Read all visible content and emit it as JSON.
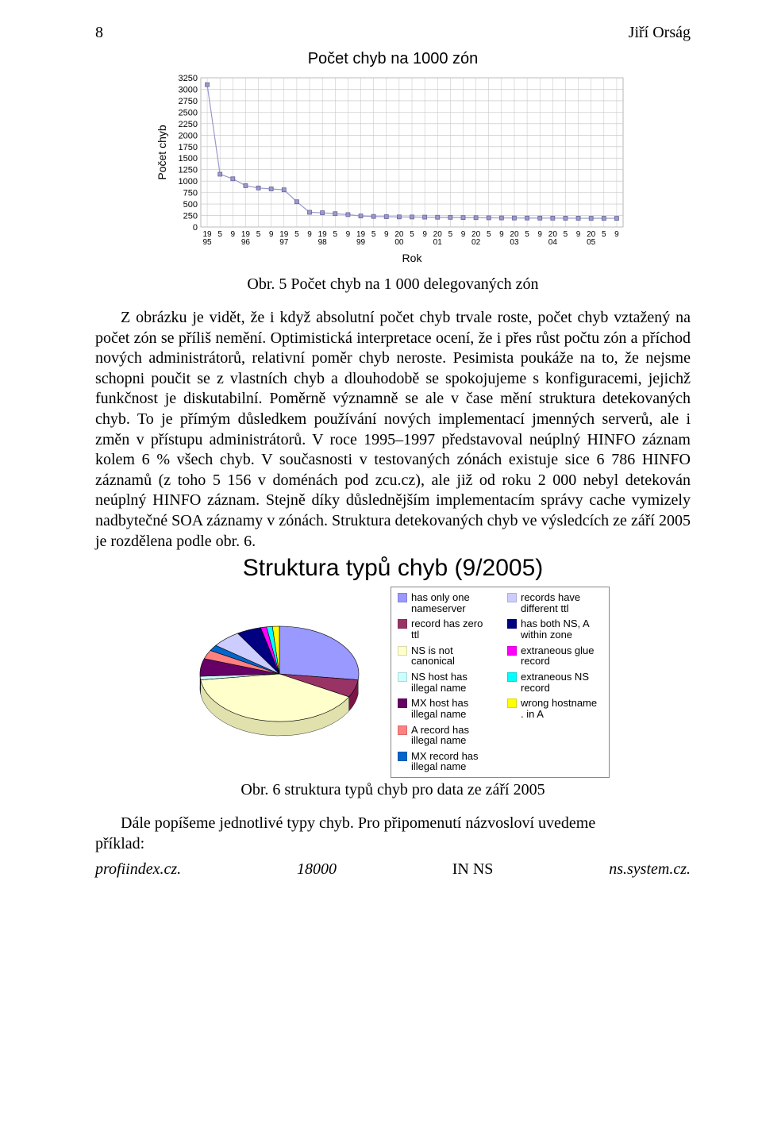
{
  "page": {
    "number": "8",
    "author": "Jiří Orság"
  },
  "chart1": {
    "type": "scatter-line",
    "title": "Počet chyb na 1000 zón",
    "ylabel": "Počet chyb",
    "xlabel": "Rok",
    "yticks": [
      0,
      250,
      500,
      750,
      1000,
      1250,
      1500,
      1750,
      2000,
      2250,
      2500,
      2750,
      3000,
      3250
    ],
    "ylim": [
      0,
      3250
    ],
    "years": [
      "19\n95",
      "19\n96",
      "19\n97",
      "19\n98",
      "19\n99",
      "20\n00",
      "20\n01",
      "20\n02",
      "20\n03",
      "20\n04",
      "20\n05"
    ],
    "subcols_per_year": 3,
    "sublabels": [
      "",
      "5",
      "9"
    ],
    "values": [
      3100,
      1150,
      1050,
      900,
      850,
      830,
      810,
      550,
      320,
      310,
      290,
      270,
      240,
      230,
      225,
      220,
      218,
      215,
      212,
      210,
      205,
      203,
      200,
      198,
      196,
      195,
      194,
      193,
      192,
      191,
      190,
      190,
      189
    ],
    "marker_color": "#9999cc",
    "marker_border": "#666699",
    "line_color": "#9999cc",
    "tick_fontsize": 11,
    "label_fontsize": 14,
    "title_fontsize": 18,
    "grid_color": "#c0c0c0",
    "background_color": "#ffffff",
    "marker_size": 5
  },
  "caption1": "Obr. 5 Počet chyb na 1 000 delegovaných zón",
  "body": "Z obrázku je vidět, že i když absolutní počet chyb trvale roste, počet chyb vztažený na počet zón se příliš nemění. Optimistická interpretace ocení, že i přes růst počtu zón a příchod nových administrátorů, relativní poměr chyb neroste. Pesimista poukáže na to, že nejsme schopni poučit se z vlastních chyb a dlouhodobě se spokojujeme s konfiguracemi, jejichž funkčnost je diskutabilní. Poměrně významně se ale v čase mění struktura detekovaných chyb. To je přímým důsledkem používání nových implementací jmenných serverů, ale i změn v přístupu administrátorů. V roce 1995–1997 představoval neúplný HINFO záznam kolem 6 % všech chyb. V současnosti v testovaných zónách existuje sice 6 786 HINFO záznamů (z toho 5 156 v doménách pod zcu.cz), ale již od roku 2 000 nebyl detekován neúplný HINFO záznam. Stejně díky důslednějším implementacím správy cache vymizely nadbytečné SOA záznamy v zónách. Struktura detekovaných chyb ve výsledcích ze září 2005 je rozdělena podle obr. 6.",
  "chart2": {
    "type": "pie",
    "title": "Struktura typů chyb (9/2005)",
    "slices": [
      {
        "label": "has only one nameserver",
        "color": "#9999ff",
        "value": 27
      },
      {
        "label": "record has zero ttl",
        "color": "#993366",
        "value": 6
      },
      {
        "label": "NS is not canonical",
        "color": "#ffffcc",
        "value": 40
      },
      {
        "label": "NS host has illegal name",
        "color": "#ccffff",
        "value": 1.2
      },
      {
        "label": "MX host has illegal name",
        "color": "#660066",
        "value": 6
      },
      {
        "label": "A record has illegal name",
        "color": "#ff8080",
        "value": 3
      },
      {
        "label": "MX record has illegal name",
        "color": "#0066cc",
        "value": 2
      },
      {
        "label": "records have different ttl",
        "color": "#ccccff",
        "value": 6
      },
      {
        "label": "has both NS, A within zone",
        "color": "#000080",
        "value": 5
      },
      {
        "label": "extraneous glue record",
        "color": "#ff00ff",
        "value": 1.2
      },
      {
        "label": "extraneous NS record",
        "color": "#00ffff",
        "value": 1.2
      },
      {
        "label": "wrong hostname . in A",
        "color": "#ffff00",
        "value": 1.4
      }
    ],
    "outline_color": "#000000",
    "background_color": "#ffffff"
  },
  "caption2": "Obr. 6 struktura typů chyb pro data ze září 2005",
  "para2_prefix": "Dále popíšeme jednotlivé typy chyb. Pro připomenutí názvosloví uvedeme",
  "para2_suffix": "příklad:",
  "footer": {
    "left": "profiindex.cz.",
    "mid_num": "18000",
    "mid_txt": "IN   NS",
    "right": "ns.system.cz."
  }
}
